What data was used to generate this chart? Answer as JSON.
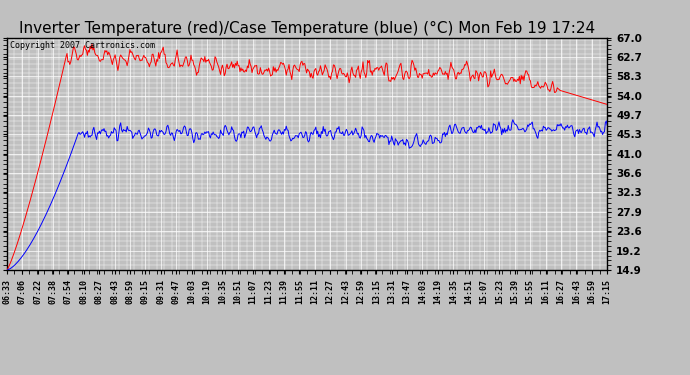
{
  "title": "Inverter Temperature (red)/Case Temperature (blue) (°C) Mon Feb 19 17:24",
  "copyright": "Copyright 2007 Cartronics.com",
  "ylabel_right_ticks": [
    14.9,
    19.2,
    23.6,
    27.9,
    32.3,
    36.6,
    41.0,
    45.3,
    49.7,
    54.0,
    58.3,
    62.7,
    67.0
  ],
  "ymin": 14.9,
  "ymax": 67.0,
  "bg_color": "#c0c0c0",
  "plot_bg_color": "#c0c0c0",
  "grid_color": "#ffffff",
  "red_color": "#ff0000",
  "blue_color": "#0000ff",
  "title_fontsize": 11,
  "x_labels": [
    "06:33",
    "07:06",
    "07:22",
    "07:38",
    "07:54",
    "08:10",
    "08:27",
    "08:43",
    "08:59",
    "09:15",
    "09:31",
    "09:47",
    "10:03",
    "10:19",
    "10:35",
    "10:51",
    "11:07",
    "11:23",
    "11:39",
    "11:55",
    "12:11",
    "12:27",
    "12:43",
    "12:59",
    "13:15",
    "13:31",
    "13:47",
    "14:03",
    "14:19",
    "14:35",
    "14:51",
    "15:07",
    "15:23",
    "15:39",
    "15:55",
    "16:11",
    "16:27",
    "16:43",
    "16:59",
    "17:15"
  ]
}
